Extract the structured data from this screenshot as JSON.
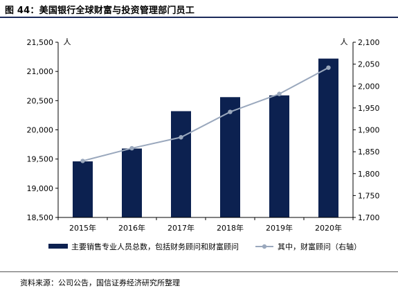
{
  "figure": {
    "title": "图 44：美国银行全球财富与投资管理部门员工",
    "source": "资料来源：公司公告，国信证券经济研究所整理"
  },
  "chart_data": {
    "type": "bar",
    "categories": [
      "2015年",
      "2016年",
      "2017年",
      "2018年",
      "2019年",
      "2020年"
    ],
    "series": [
      {
        "name": "主要销售专业人员总数，包括财务顾问和财富顾问",
        "type": "bar",
        "axis": "left",
        "color": "#0c2150",
        "values": [
          19460,
          19680,
          20320,
          20560,
          20590,
          21220
        ]
      },
      {
        "name": "其中，财富顾问（右轴）",
        "type": "line",
        "axis": "right",
        "color": "#9aa8bd",
        "values": [
          1829,
          1858,
          1883,
          1941,
          1982,
          2042
        ]
      }
    ],
    "yleft": {
      "unit": "人",
      "ylim": [
        18500,
        21500
      ],
      "ticks": [
        "18,500",
        "19,000",
        "19,500",
        "20,000",
        "20,500",
        "21,000",
        "21,500"
      ]
    },
    "yright": {
      "unit": "人",
      "ylim": [
        1700,
        2100
      ],
      "ticks": [
        "1,700",
        "1,750",
        "1,800",
        "1,850",
        "1,900",
        "1,950",
        "2,000",
        "2,050",
        "2,100"
      ]
    },
    "grid": false,
    "legend": "bottom"
  }
}
